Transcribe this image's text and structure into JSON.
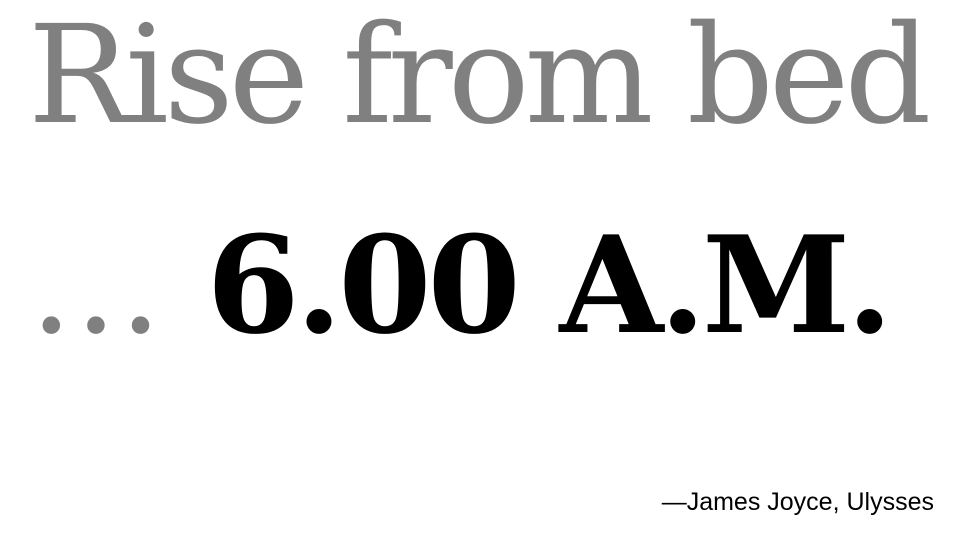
{
  "quote": {
    "line1": "Rise from bed",
    "ellipsis": "...",
    "time": "6.00 A.M.",
    "attribution": "—James Joyce, Ulysses"
  },
  "colors": {
    "muted_text": "#808080",
    "emphasis_text": "#000000",
    "background": "#ffffff"
  }
}
